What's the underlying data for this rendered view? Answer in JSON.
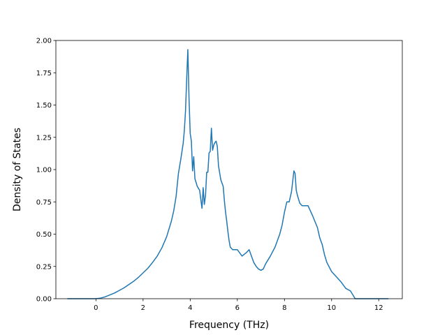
{
  "chart_data": {
    "type": "line",
    "title": "",
    "xlabel": "Frequency (THz)",
    "ylabel": "Density of States",
    "xlim": [
      -1.7,
      13.0
    ],
    "ylim": [
      0.0,
      2.0
    ],
    "x_ticks": [
      0,
      2,
      4,
      6,
      8,
      10,
      12
    ],
    "x_tick_labels": [
      "0",
      "2",
      "4",
      "6",
      "8",
      "10",
      "12"
    ],
    "y_ticks": [
      0.0,
      0.25,
      0.5,
      0.75,
      1.0,
      1.25,
      1.5,
      1.75,
      2.0
    ],
    "y_tick_labels": [
      "0.00",
      "0.25",
      "0.50",
      "0.75",
      "1.00",
      "1.25",
      "1.50",
      "1.75",
      "2.00"
    ],
    "grid": false,
    "color": "#1f77b4",
    "series": [
      {
        "x": [
          -1.2,
          -1.0,
          -0.5,
          0.0,
          0.2,
          0.4,
          0.6,
          0.8,
          1.0,
          1.2,
          1.4,
          1.6,
          1.8,
          2.0,
          2.2,
          2.4,
          2.6,
          2.8,
          3.0,
          3.2,
          3.3,
          3.4,
          3.5,
          3.6,
          3.7,
          3.75,
          3.8,
          3.85,
          3.9,
          3.95,
          4.0,
          4.05,
          4.1,
          4.15,
          4.2,
          4.25,
          4.3,
          4.4,
          4.5,
          4.55,
          4.6,
          4.65,
          4.7,
          4.75,
          4.8,
          4.85,
          4.9,
          4.95,
          5.0,
          5.05,
          5.1,
          5.15,
          5.2,
          5.3,
          5.4,
          5.45,
          5.5,
          5.55,
          5.6,
          5.65,
          5.7,
          5.8,
          6.0,
          6.2,
          6.4,
          6.5,
          6.6,
          6.7,
          6.8,
          6.9,
          7.0,
          7.1,
          7.2,
          7.4,
          7.6,
          7.7,
          7.8,
          7.9,
          8.0,
          8.1,
          8.2,
          8.3,
          8.4,
          8.45,
          8.5,
          8.55,
          8.6,
          8.65,
          8.7,
          8.75,
          8.8,
          8.9,
          9.0,
          9.2,
          9.4,
          9.5,
          9.6,
          9.65,
          9.7,
          9.8,
          10.0,
          10.2,
          10.4,
          10.6,
          10.8,
          11.0,
          11.1,
          11.2,
          11.25,
          11.3,
          11.4,
          11.6,
          12.0,
          12.4
        ],
        "y": [
          0.0,
          0.0,
          0.0,
          0.0,
          0.005,
          0.015,
          0.03,
          0.045,
          0.065,
          0.085,
          0.11,
          0.135,
          0.165,
          0.2,
          0.235,
          0.28,
          0.33,
          0.395,
          0.48,
          0.6,
          0.68,
          0.79,
          0.97,
          1.08,
          1.2,
          1.3,
          1.45,
          1.7,
          1.93,
          1.55,
          1.28,
          1.22,
          0.99,
          1.1,
          0.93,
          0.9,
          0.87,
          0.84,
          0.7,
          0.86,
          0.73,
          0.8,
          0.98,
          0.98,
          1.13,
          1.14,
          1.32,
          1.15,
          1.19,
          1.21,
          1.22,
          1.18,
          1.03,
          0.92,
          0.87,
          0.76,
          0.67,
          0.6,
          0.52,
          0.45,
          0.4,
          0.38,
          0.38,
          0.33,
          0.36,
          0.38,
          0.33,
          0.28,
          0.25,
          0.23,
          0.22,
          0.23,
          0.27,
          0.33,
          0.4,
          0.45,
          0.5,
          0.57,
          0.67,
          0.75,
          0.75,
          0.83,
          0.99,
          0.97,
          0.84,
          0.8,
          0.77,
          0.74,
          0.73,
          0.72,
          0.72,
          0.72,
          0.72,
          0.64,
          0.55,
          0.47,
          0.42,
          0.38,
          0.34,
          0.28,
          0.21,
          0.17,
          0.13,
          0.08,
          0.06,
          0.0,
          0.0,
          0.0,
          0.0,
          0.0,
          0.0,
          0.0,
          0.0,
          0.0
        ],
        "x_sorted_note": ""
      }
    ]
  }
}
